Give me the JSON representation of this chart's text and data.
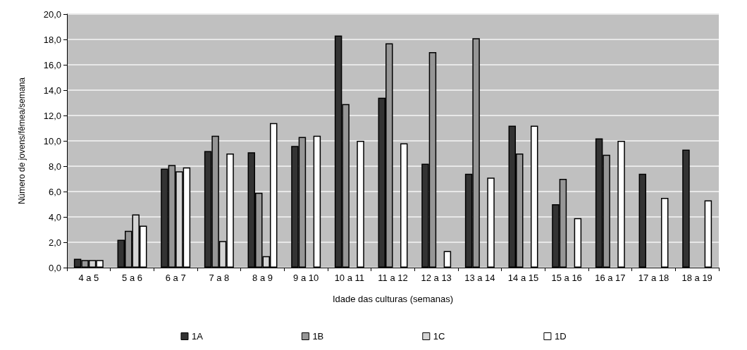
{
  "chart_data": {
    "type": "bar",
    "xlabel": "Idade das culturas (semanas)",
    "ylabel": "Número de jovens/fêmea/semana",
    "categories": [
      "4 a 5",
      "5 a 6",
      "6 a 7",
      "7 a 8",
      "8 a 9",
      "9 a 10",
      "10 a 11",
      "11 a 12",
      "12 a 13",
      "13 a 14",
      "14 a 15",
      "15 a 16",
      "16 a 17",
      "17 a 18",
      "18 a 19"
    ],
    "series": [
      {
        "name": "1A",
        "color": "#333333",
        "values": [
          0.7,
          2.2,
          7.8,
          9.2,
          9.1,
          9.6,
          18.3,
          13.4,
          8.2,
          7.4,
          11.2,
          5.0,
          10.2,
          7.4,
          9.3
        ]
      },
      {
        "name": "1B",
        "color": "#969696",
        "values": [
          0.6,
          2.9,
          8.1,
          10.4,
          5.9,
          10.3,
          12.9,
          17.7,
          17.0,
          18.1,
          9.0,
          7.0,
          8.9,
          null,
          null
        ]
      },
      {
        "name": "1C",
        "color": "#d4d4d4",
        "values": [
          0.6,
          4.2,
          7.6,
          2.1,
          0.9,
          null,
          null,
          null,
          null,
          null,
          null,
          null,
          null,
          null,
          null
        ]
      },
      {
        "name": "1D",
        "color": "#ffffff",
        "values": [
          0.6,
          3.3,
          7.9,
          9.0,
          11.4,
          10.4,
          10.0,
          9.8,
          1.3,
          7.1,
          11.2,
          3.9,
          10.0,
          5.5,
          5.3
        ]
      }
    ],
    "ylim": [
      0,
      20
    ],
    "yticks": [
      {
        "value": 0,
        "label": "0,0"
      },
      {
        "value": 2,
        "label": "2,0"
      },
      {
        "value": 4,
        "label": "4,0"
      },
      {
        "value": 6,
        "label": "6,0"
      },
      {
        "value": 8,
        "label": "8,0"
      },
      {
        "value": 10,
        "label": "10,0"
      },
      {
        "value": 12,
        "label": "12,0"
      },
      {
        "value": 14,
        "label": "14,0"
      },
      {
        "value": 16,
        "label": "16,0"
      },
      {
        "value": 18,
        "label": "18,0"
      },
      {
        "value": 20,
        "label": "20,0"
      }
    ],
    "grid": "y",
    "legend": "bottom"
  }
}
